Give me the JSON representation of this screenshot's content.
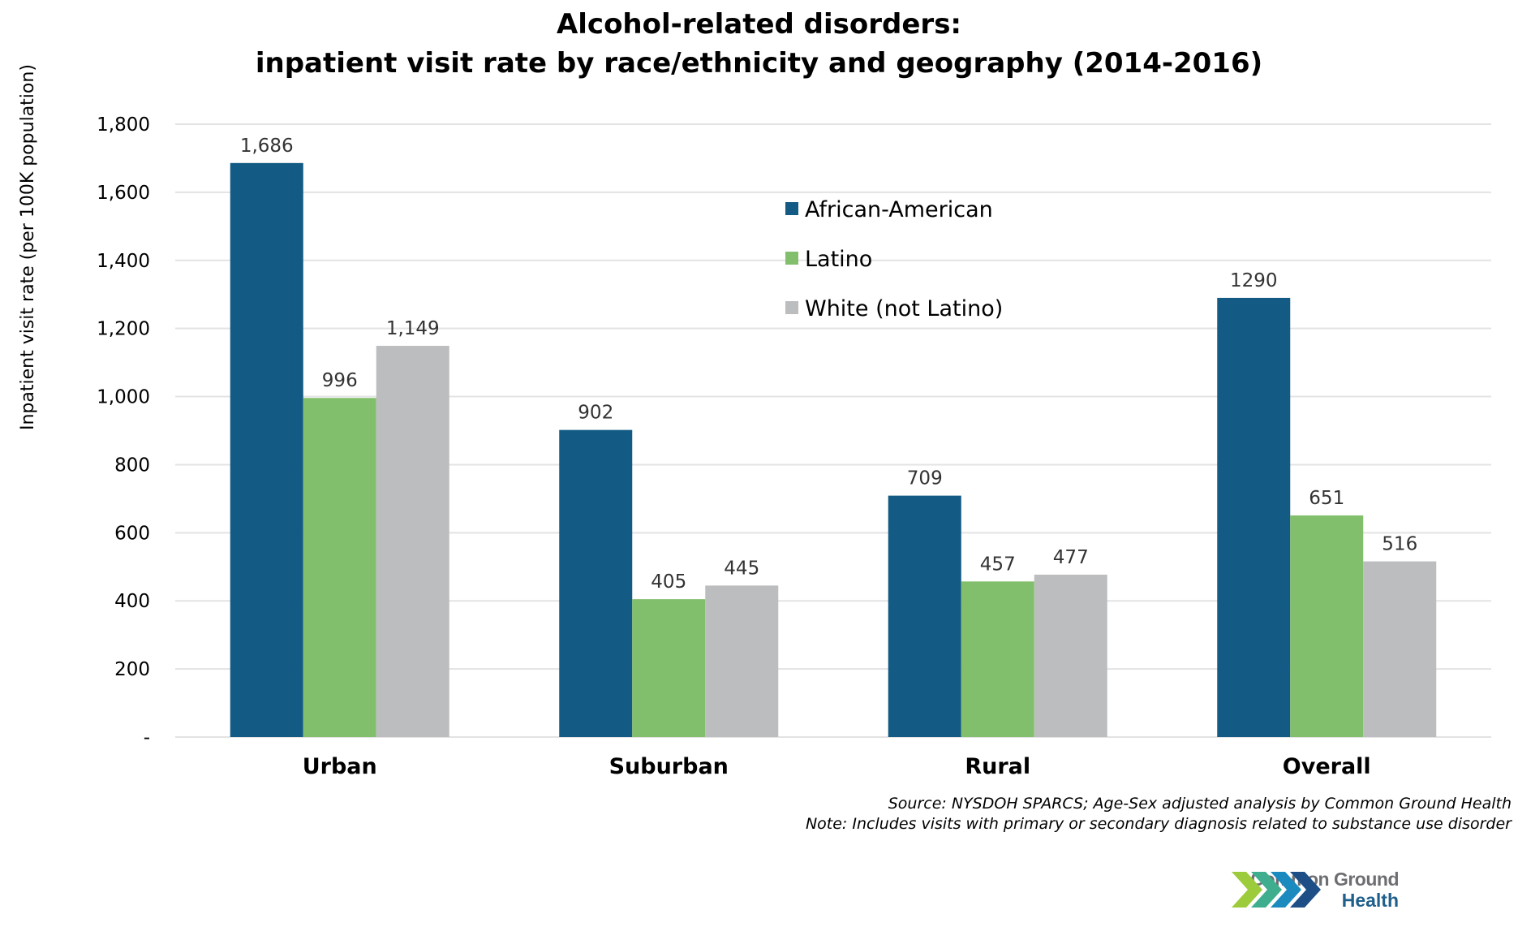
{
  "chart_data": {
    "type": "bar",
    "title": "Alcohol-related disorders:",
    "subtitle": "inpatient visit rate by race/ethnicity and geography (2014-2016)",
    "xlabel": "",
    "ylabel": "Inpatient visit rate (per 100K population)",
    "categories": [
      "Urban",
      "Suburban",
      "Rural",
      "Overall"
    ],
    "series": [
      {
        "name": "African-American",
        "color": "#135b84",
        "values": [
          1686,
          902,
          709,
          1290
        ],
        "labels": [
          "1,686",
          "902",
          "709",
          "1290"
        ]
      },
      {
        "name": "Latino",
        "color": "#82bf6d",
        "values": [
          996,
          405,
          457,
          651
        ],
        "labels": [
          "996",
          "405",
          "457",
          "651"
        ]
      },
      {
        "name": "White (not Latino)",
        "color": "#bcbdbf",
        "values": [
          1149,
          445,
          477,
          516
        ],
        "labels": [
          "1,149",
          "445",
          "477",
          "516"
        ]
      }
    ],
    "ylim": [
      0,
      1800
    ],
    "yticks": [
      0,
      200,
      400,
      600,
      800,
      1000,
      1200,
      1400,
      1600,
      1800
    ],
    "ytick_labels": [
      "-",
      "200",
      "400",
      "600",
      "800",
      "1,000",
      "1,200",
      "1,400",
      "1,600",
      "1,800"
    ],
    "grid": true,
    "legend_position": "top-center"
  },
  "footer": {
    "source": "Source: NYSDOH SPARCS; Age-Sex adjusted analysis by Common Ground Health",
    "note": "Note: Includes visits with primary or secondary diagnosis related to substance use disorder"
  },
  "logo": {
    "line1": "Common Ground",
    "line2": "Health"
  }
}
